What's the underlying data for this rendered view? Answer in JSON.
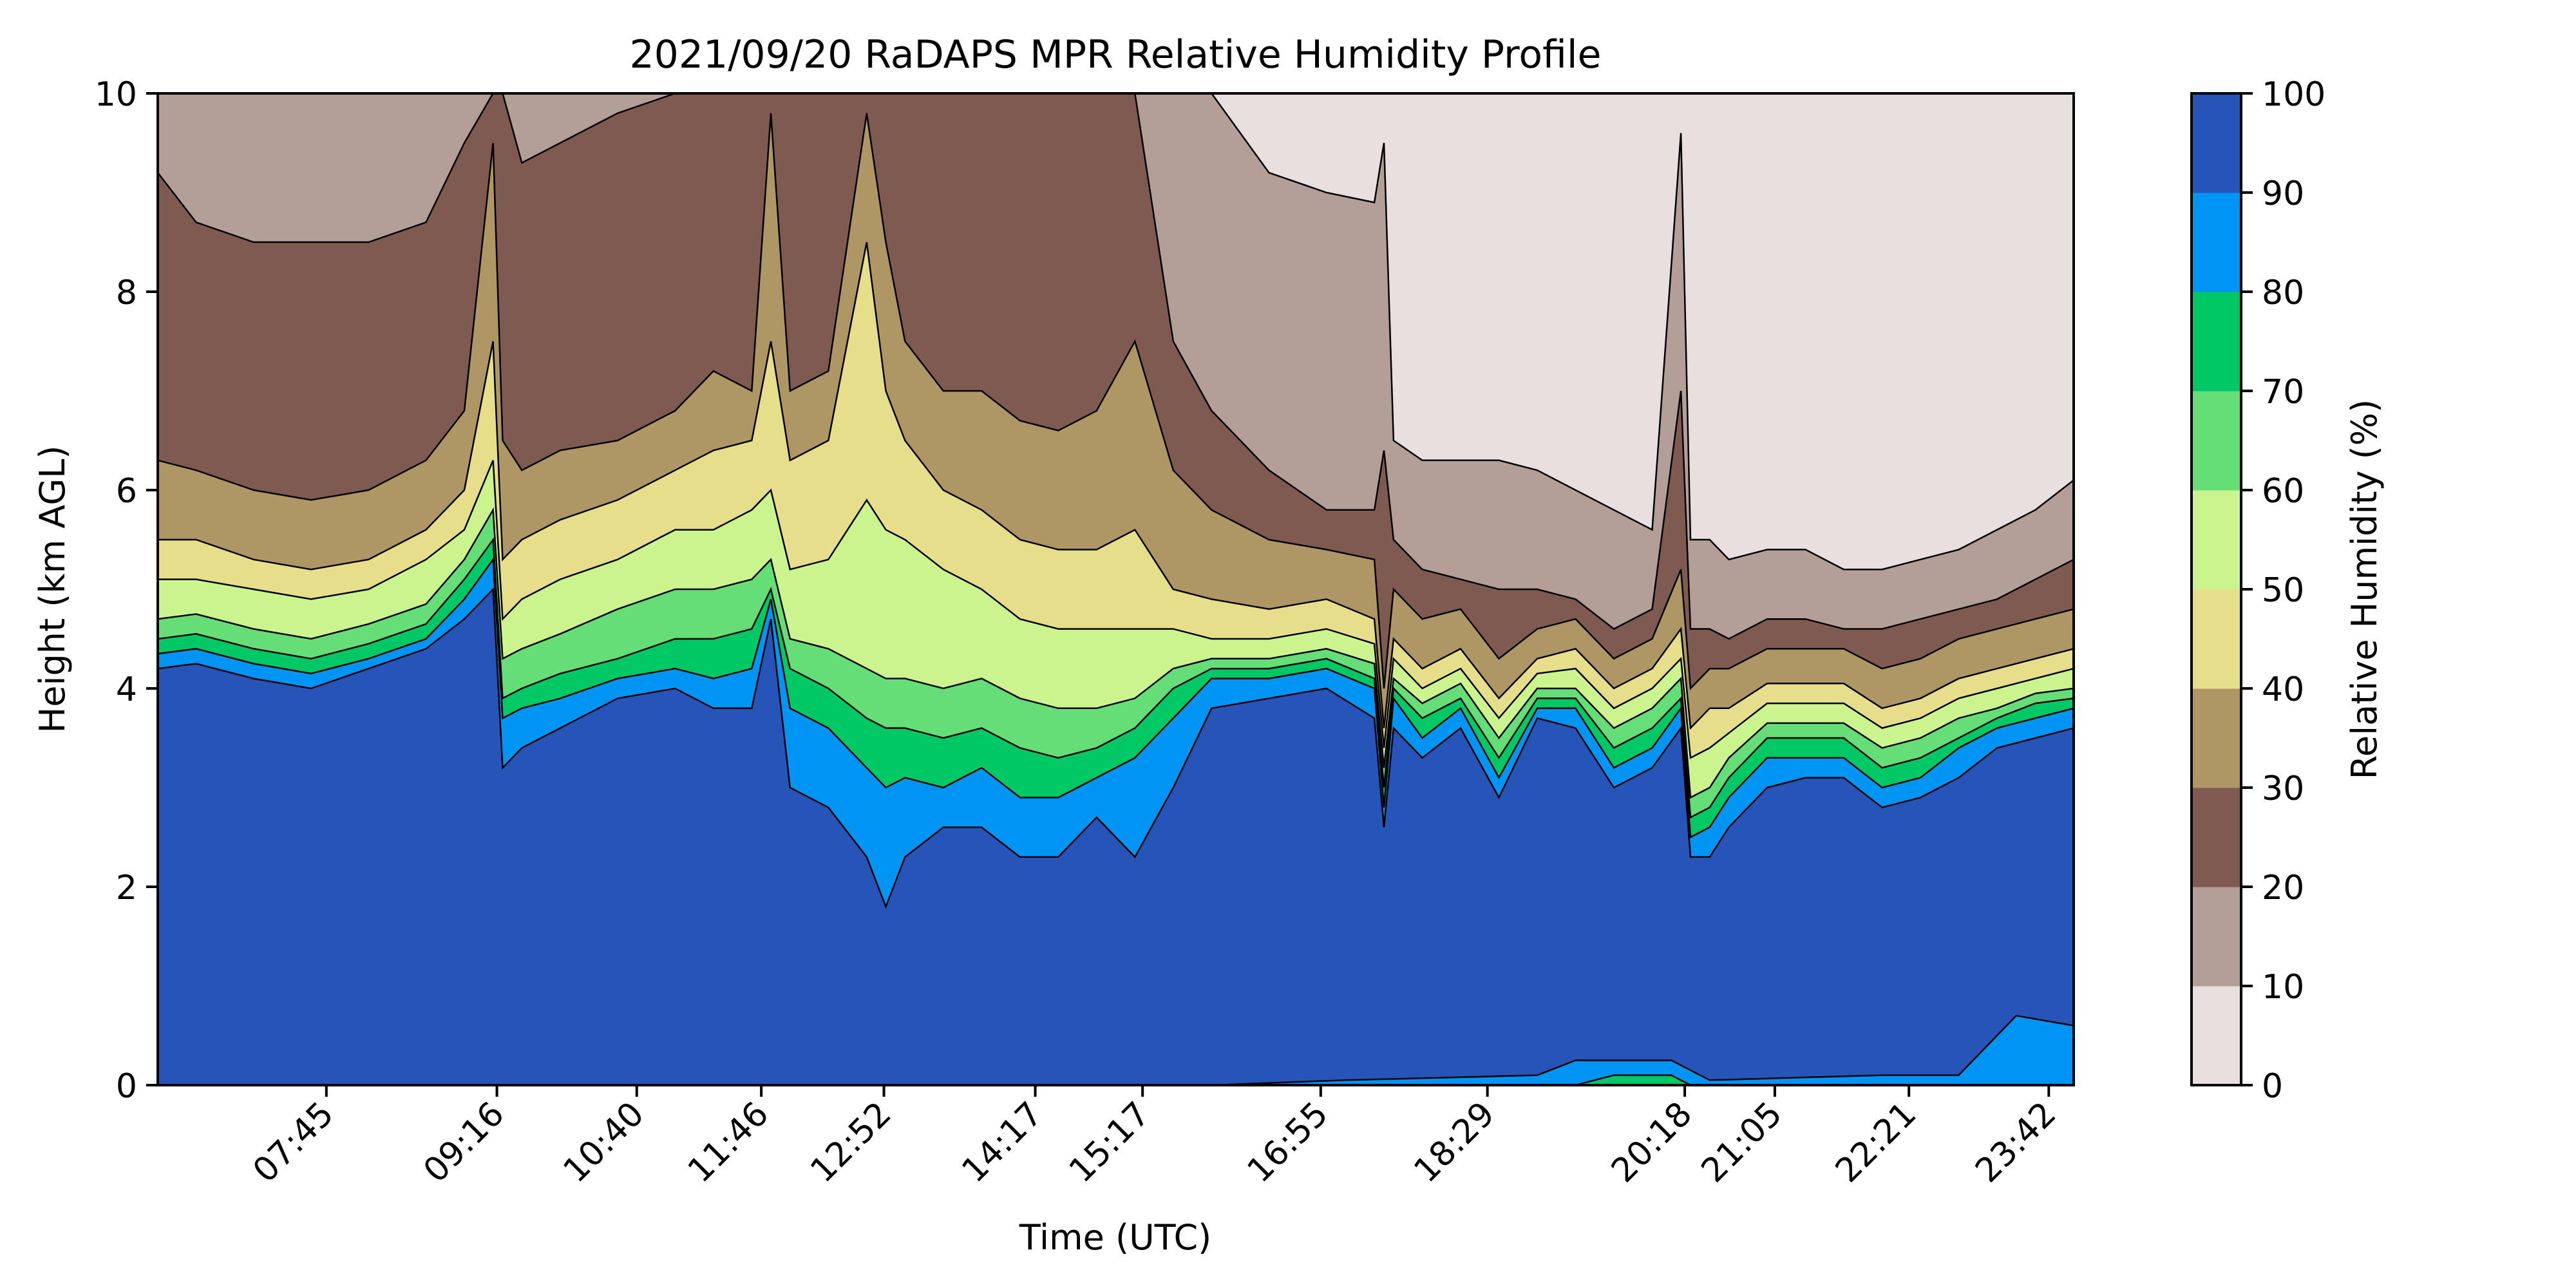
{
  "chart_data": {
    "type": "heatmap",
    "subtype": "filled-contour",
    "title": "2021/09/20 RaDAPS MPR Relative Humidity Profile",
    "xlabel": "Time (UTC)",
    "ylabel": "Height (km AGL)",
    "ylim": [
      0,
      10
    ],
    "yticks": [
      0,
      2,
      4,
      6,
      8,
      10
    ],
    "x_tick_labels": [
      "07:45",
      "09:16",
      "10:40",
      "11:46",
      "12:52",
      "14:17",
      "15:17",
      "16:55",
      "18:29",
      "20:18",
      "21:05",
      "22:21",
      "23:42"
    ],
    "x_tick_positions": [
      0.088,
      0.177,
      0.25,
      0.315,
      0.379,
      0.458,
      0.514,
      0.607,
      0.694,
      0.797,
      0.844,
      0.914,
      0.987
    ],
    "colorbar": {
      "label": "Relative Humidity (%)",
      "ticks": [
        0,
        10,
        20,
        30,
        40,
        50,
        60,
        70,
        80,
        90,
        100
      ],
      "levels": [
        0,
        10,
        20,
        30,
        40,
        50,
        60,
        70,
        80,
        90,
        100
      ],
      "colors": [
        "#e8dfde",
        "#b39e98",
        "#7f5a50",
        "#af9665",
        "#e6de8a",
        "#cbf48f",
        "#66de78",
        "#00c865",
        "#0095f5",
        "#2654b8"
      ]
    },
    "profile_x": [
      0,
      0.02,
      0.05,
      0.08,
      0.11,
      0.14,
      0.16,
      0.175,
      0.18,
      0.19,
      0.21,
      0.24,
      0.27,
      0.29,
      0.31,
      0.32,
      0.33,
      0.35,
      0.37,
      0.38,
      0.39,
      0.41,
      0.43,
      0.45,
      0.47,
      0.49,
      0.51,
      0.53,
      0.55,
      0.58,
      0.61,
      0.635,
      0.64,
      0.645,
      0.66,
      0.68,
      0.7,
      0.72,
      0.74,
      0.76,
      0.78,
      0.795,
      0.8,
      0.81,
      0.82,
      0.84,
      0.86,
      0.88,
      0.9,
      0.92,
      0.94,
      0.96,
      0.98,
      1.0
    ],
    "contour_heights_km": {
      "90": [
        4.2,
        4.25,
        4.1,
        4.0,
        4.2,
        4.4,
        4.7,
        5.0,
        3.2,
        3.4,
        3.6,
        3.9,
        4.0,
        3.8,
        3.8,
        4.7,
        3.0,
        2.8,
        2.3,
        1.8,
        2.3,
        2.6,
        2.6,
        2.3,
        2.3,
        2.7,
        2.3,
        3.0,
        3.8,
        3.9,
        4.0,
        3.7,
        2.6,
        3.6,
        3.3,
        3.6,
        2.9,
        3.7,
        3.6,
        3.0,
        3.2,
        3.6,
        2.3,
        2.3,
        2.6,
        3.0,
        3.1,
        3.1,
        2.8,
        2.9,
        3.1,
        3.4,
        3.5,
        3.6
      ],
      "80": [
        4.35,
        4.4,
        4.25,
        4.15,
        4.3,
        4.5,
        4.9,
        5.3,
        3.7,
        3.8,
        3.9,
        4.1,
        4.2,
        4.1,
        4.2,
        4.9,
        3.8,
        3.6,
        3.2,
        3.0,
        3.1,
        3.0,
        3.2,
        2.9,
        2.9,
        3.1,
        3.3,
        3.7,
        4.1,
        4.1,
        4.2,
        4.0,
        2.8,
        3.9,
        3.5,
        3.8,
        3.1,
        3.8,
        3.8,
        3.2,
        3.4,
        3.8,
        2.5,
        2.6,
        2.9,
        3.3,
        3.3,
        3.3,
        3.0,
        3.1,
        3.4,
        3.6,
        3.7,
        3.8
      ],
      "70": [
        4.5,
        4.55,
        4.4,
        4.3,
        4.45,
        4.65,
        5.1,
        5.5,
        3.9,
        4.0,
        4.15,
        4.3,
        4.5,
        4.5,
        4.6,
        5.0,
        4.2,
        4.0,
        3.7,
        3.6,
        3.6,
        3.5,
        3.6,
        3.4,
        3.3,
        3.4,
        3.6,
        4.0,
        4.2,
        4.2,
        4.3,
        4.1,
        3.0,
        4.0,
        3.7,
        3.9,
        3.3,
        3.9,
        3.9,
        3.4,
        3.6,
        3.9,
        2.7,
        2.8,
        3.1,
        3.5,
        3.5,
        3.5,
        3.2,
        3.3,
        3.5,
        3.7,
        3.85,
        3.9
      ],
      "60": [
        4.7,
        4.75,
        4.6,
        4.5,
        4.65,
        4.85,
        5.3,
        5.8,
        4.3,
        4.4,
        4.55,
        4.8,
        5.0,
        5.0,
        5.1,
        5.3,
        4.5,
        4.4,
        4.2,
        4.1,
        4.1,
        4.0,
        4.1,
        3.9,
        3.8,
        3.8,
        3.9,
        4.2,
        4.3,
        4.3,
        4.4,
        4.25,
        3.2,
        4.1,
        3.85,
        4.05,
        3.5,
        4.0,
        4.0,
        3.6,
        3.8,
        4.1,
        2.9,
        3.0,
        3.3,
        3.65,
        3.65,
        3.65,
        3.4,
        3.5,
        3.7,
        3.8,
        3.95,
        4.0
      ],
      "50": [
        5.1,
        5.1,
        5.0,
        4.9,
        5.0,
        5.3,
        5.6,
        6.3,
        4.7,
        4.9,
        5.1,
        5.3,
        5.6,
        5.6,
        5.8,
        6.0,
        5.2,
        5.3,
        5.9,
        5.6,
        5.5,
        5.2,
        5.0,
        4.7,
        4.6,
        4.6,
        4.6,
        4.6,
        4.5,
        4.5,
        4.6,
        4.45,
        3.4,
        4.3,
        4.0,
        4.2,
        3.7,
        4.15,
        4.2,
        3.8,
        4.0,
        4.3,
        3.3,
        3.4,
        3.55,
        3.85,
        3.85,
        3.85,
        3.6,
        3.7,
        3.9,
        4.0,
        4.1,
        4.2
      ],
      "40": [
        5.5,
        5.5,
        5.3,
        5.2,
        5.3,
        5.6,
        6.0,
        7.5,
        5.3,
        5.5,
        5.7,
        5.9,
        6.2,
        6.4,
        6.5,
        7.5,
        6.3,
        6.5,
        8.5,
        7.0,
        6.5,
        6.0,
        5.8,
        5.5,
        5.4,
        5.4,
        5.6,
        5.0,
        4.9,
        4.8,
        4.9,
        4.7,
        3.6,
        4.5,
        4.2,
        4.4,
        3.9,
        4.3,
        4.4,
        4.0,
        4.2,
        4.6,
        3.6,
        3.8,
        3.8,
        4.05,
        4.05,
        4.05,
        3.8,
        3.9,
        4.1,
        4.2,
        4.3,
        4.4
      ],
      "30": [
        6.3,
        6.2,
        6.0,
        5.9,
        6.0,
        6.3,
        6.8,
        9.5,
        6.5,
        6.2,
        6.4,
        6.5,
        6.8,
        7.2,
        7.0,
        9.8,
        7.0,
        7.2,
        9.8,
        8.5,
        7.5,
        7.0,
        7.0,
        6.7,
        6.6,
        6.8,
        7.5,
        6.2,
        5.8,
        5.5,
        5.4,
        5.3,
        4.0,
        5.0,
        4.7,
        4.8,
        4.3,
        4.6,
        4.7,
        4.3,
        4.5,
        5.2,
        4.0,
        4.2,
        4.2,
        4.4,
        4.4,
        4.4,
        4.2,
        4.3,
        4.5,
        4.6,
        4.7,
        4.8
      ],
      "20": [
        9.2,
        8.7,
        8.5,
        8.5,
        8.5,
        8.7,
        9.5,
        10,
        10,
        9.3,
        9.5,
        9.8,
        10,
        10,
        10,
        10,
        10,
        10,
        10,
        10,
        10,
        10,
        10,
        10,
        10,
        10,
        10,
        7.5,
        6.8,
        6.2,
        5.8,
        5.8,
        6.4,
        5.5,
        5.2,
        5.1,
        5.0,
        5.0,
        4.9,
        4.6,
        4.8,
        7.0,
        4.6,
        4.6,
        4.5,
        4.7,
        4.7,
        4.6,
        4.6,
        4.7,
        4.8,
        4.9,
        5.1,
        5.3
      ],
      "10": [
        10,
        10,
        10,
        10,
        10,
        10,
        10,
        10,
        10,
        10,
        10,
        10,
        10,
        10,
        10,
        10,
        10,
        10,
        10,
        10,
        10,
        10,
        10,
        10,
        10,
        10,
        10,
        10,
        10,
        9.2,
        9.0,
        8.9,
        9.5,
        6.5,
        6.3,
        6.3,
        6.3,
        6.2,
        6.0,
        5.8,
        5.6,
        9.6,
        5.5,
        5.5,
        5.3,
        5.4,
        5.4,
        5.2,
        5.2,
        5.3,
        5.4,
        5.6,
        5.8,
        6.1
      ]
    }
  }
}
